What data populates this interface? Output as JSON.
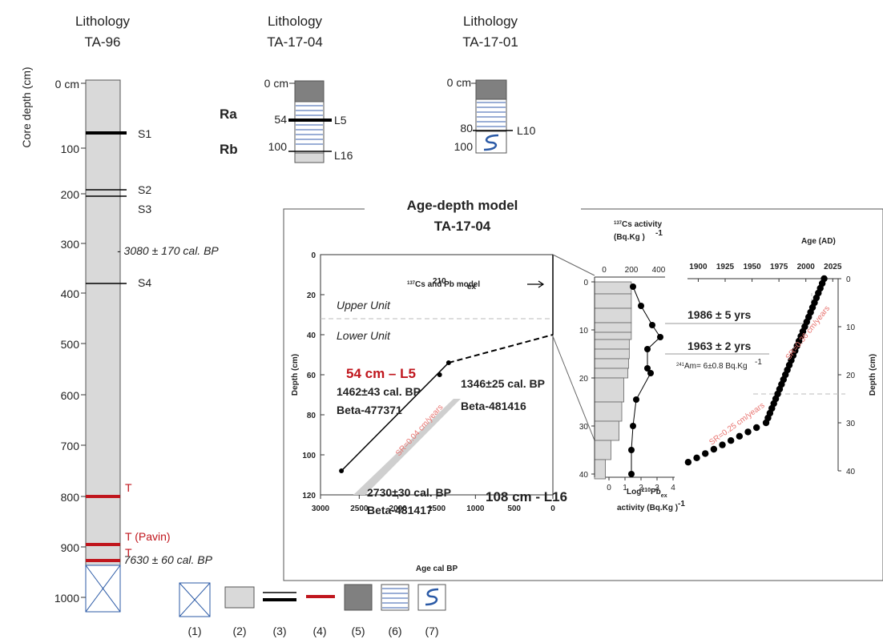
{
  "cores": {
    "ta96": {
      "title1": "Lithology",
      "title2": "TA-96",
      "axis_label": "Core depth (cm)",
      "ticks": [
        "0 cm",
        "100",
        "200",
        "300",
        "400",
        "500",
        "600",
        "700",
        "800",
        "900",
        "1000"
      ],
      "markers": [
        "S1",
        "S2",
        "S3",
        "S4",
        "T (Pavin)",
        "T",
        "T"
      ],
      "dates": [
        "- 3080 ± 170 cal. BP",
        "- 7630 ± 60 cal. BP"
      ]
    },
    "ta1704": {
      "title1": "Lithology",
      "title2": "TA-17-04",
      "ticks": [
        "0 cm",
        "54",
        "100"
      ],
      "units": [
        "Ra",
        "Rb"
      ],
      "markers": [
        "L5",
        "L16"
      ]
    },
    "ta1701": {
      "title1": "Lithology",
      "title2": "TA-17-01",
      "ticks": [
        "0 cm",
        "80",
        "100"
      ],
      "markers": [
        "L10"
      ]
    }
  },
  "legend": {
    "items": [
      "(1)",
      "(2)",
      "(3)",
      "(4)",
      "(5)",
      "(6)",
      "(7)"
    ]
  },
  "model": {
    "title1": "Age-depth model",
    "title2": "TA-17-04",
    "chart_data": [
      {
        "type": "line",
        "xlabel": "Age cal BP",
        "ylabel": "Depth (cm)",
        "xlim": [
          3000,
          0
        ],
        "ylim": [
          120,
          0
        ],
        "x_ticks": [
          "3000",
          "2500",
          "2000",
          "1500",
          "1000",
          "500",
          "0"
        ],
        "y_ticks": [
          "0",
          "20",
          "40",
          "60",
          "80",
          "100",
          "120"
        ],
        "series": [
          {
            "name": "",
            "points": [
              [
                2730,
                108
              ],
              [
                1346,
                54
              ],
              [
                0,
                40
              ],
              [
                0,
                0
              ]
            ]
          }
        ],
        "dated_points": [
          [
            2730,
            108
          ],
          [
            1462,
            60
          ],
          [
            1346,
            54
          ]
        ],
        "annotations": {
          "model_label": "Cs and Pb model",
          "model_sup1": "137",
          "model_sup2": "210",
          "model_sub": "ex",
          "upper_unit": "Upper Unit",
          "lower_unit": "Lower Unit",
          "l5_label": "54 cm – L5",
          "l16_label": "108 cm - L16",
          "date1_value": "1462±43 cal. BP",
          "date1_lab": "Beta-477371",
          "date2_value": "1346±25 cal. BP",
          "date2_lab": "Beta-481416",
          "date3_value": "2730±30 cal. BP",
          "date3_lab": "Beta-481417",
          "sr_label": "SR=0.04 cm/years"
        }
      },
      {
        "type": "bar",
        "title_sup": "137",
        "title": "Cs activity",
        "unit": "(Bq.Kg )",
        "unit_sup": "-1",
        "x_ticks": [
          "0",
          "200",
          "400"
        ],
        "y_ticks": [
          "0",
          "10",
          "20",
          "30",
          "40"
        ],
        "ylim": [
          0,
          40
        ],
        "cs_values": [
          270,
          270,
          270,
          270,
          270,
          255,
          255,
          250,
          245,
          215,
          200,
          180,
          120,
          80
        ],
        "cs_depths": [
          1,
          4,
          7,
          10,
          11.5,
          13,
          15,
          17,
          19,
          22,
          27,
          31,
          35,
          39
        ]
      },
      {
        "type": "scatter",
        "xlabel_pre": "Log",
        "xlabel_sup": "210",
        "xlabel_mid": "Pb",
        "xlabel_sub": "ex",
        "xlabel2": "activity (Bq.Kg )",
        "xlabel2_sup": "-1",
        "x_ticks": [
          "0",
          "1",
          "2",
          "3",
          "4"
        ],
        "xlim": [
          0,
          4
        ],
        "points": [
          [
            1.5,
            1
          ],
          [
            2.0,
            5
          ],
          [
            2.7,
            9
          ],
          [
            3.2,
            11.5
          ],
          [
            2.4,
            14
          ],
          [
            2.4,
            18
          ],
          [
            2.6,
            19
          ],
          [
            1.7,
            24.5
          ],
          [
            1.5,
            30
          ],
          [
            1.4,
            35
          ],
          [
            1.4,
            40
          ]
        ],
        "am_label": "Am= 6±0.8 Bq.Kg",
        "am_sup": "241",
        "am_unit_sup": "-1"
      },
      {
        "type": "scatter",
        "title": "Age (AD)",
        "ylabel": "Depth (cm)",
        "x_ticks": [
          "1900",
          "1925",
          "1950",
          "1975",
          "2000",
          "2025"
        ],
        "y_ticks": [
          "0",
          "10",
          "20",
          "30",
          "40"
        ],
        "xlim": [
          1890,
          2030
        ],
        "ylim": [
          0,
          40
        ],
        "annot_1986": "1986 ± 5 yrs",
        "annot_1963": "1963 ± 2 yrs",
        "sr_top": "SR=0.36 cm/years",
        "sr_bottom": "SR=0.25 cm/years"
      }
    ]
  },
  "colors": {
    "core_fill": "#d9d9d9",
    "dark_fill": "#808080",
    "stripe": "#9aaed6",
    "red": "#c0161d",
    "pink": "#e8736f",
    "blue": "#2b5aa6"
  }
}
